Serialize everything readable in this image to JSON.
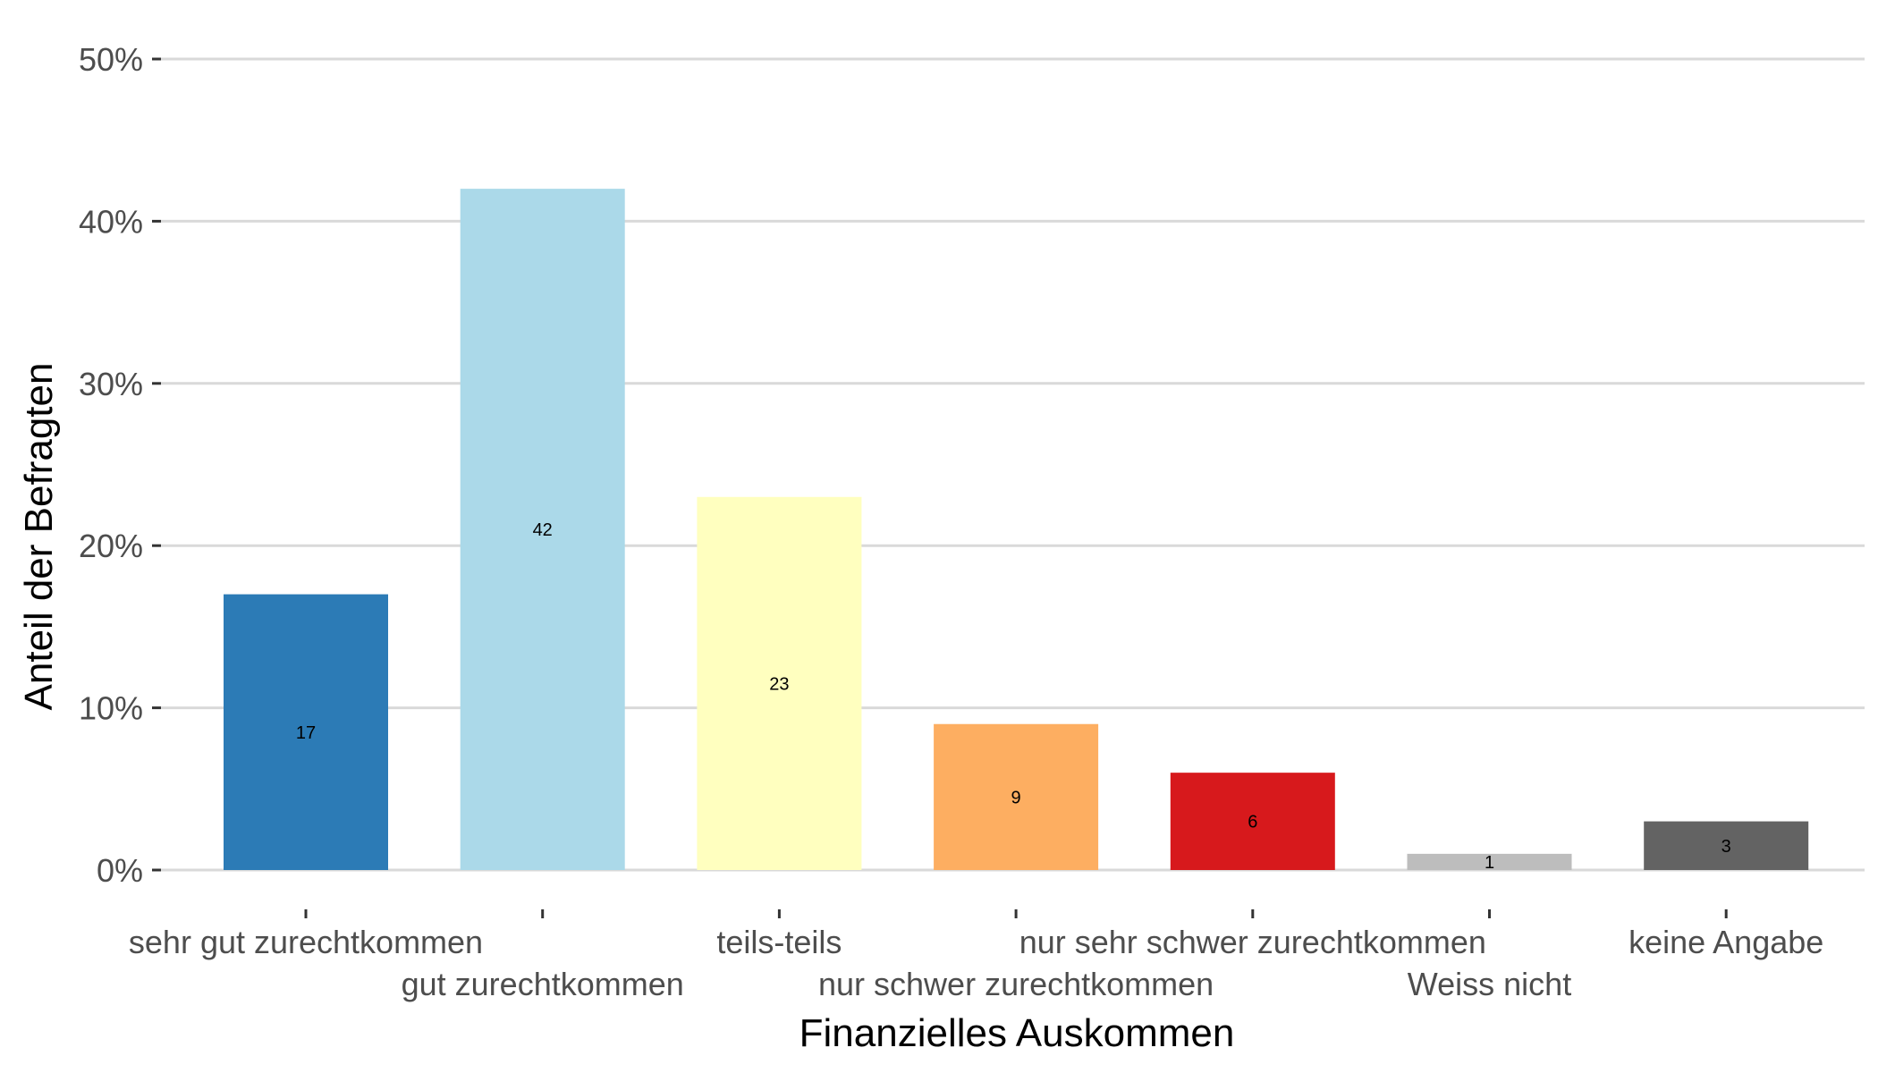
{
  "chart_data": {
    "type": "bar",
    "categories": [
      "sehr gut zurechtkommen",
      "gut zurechtkommen",
      "teils-teils",
      "nur schwer zurechtkommen",
      "nur sehr schwer zurechtkommen",
      "Weiss nicht",
      "keine Angabe"
    ],
    "values": [
      17,
      42,
      23,
      9,
      6,
      1,
      3
    ],
    "data_labels": [
      "17",
      "42",
      "23",
      "9",
      "6",
      "1",
      "3"
    ],
    "colors": [
      "#2c7bb6",
      "#abd9e9",
      "#ffffbf",
      "#fdae61",
      "#d7191c",
      "#bdbdbd",
      "#636363"
    ],
    "xlabel": "Finanzielles Auskommen",
    "ylabel": "Anteil der Befragten",
    "ylim": [
      0,
      50
    ],
    "yticks": [
      0,
      10,
      20,
      30,
      40,
      50
    ],
    "ytick_labels": [
      "0%",
      "10%",
      "20%",
      "30%",
      "40%",
      "50%"
    ],
    "grid": "horizontal",
    "legend": "none"
  }
}
